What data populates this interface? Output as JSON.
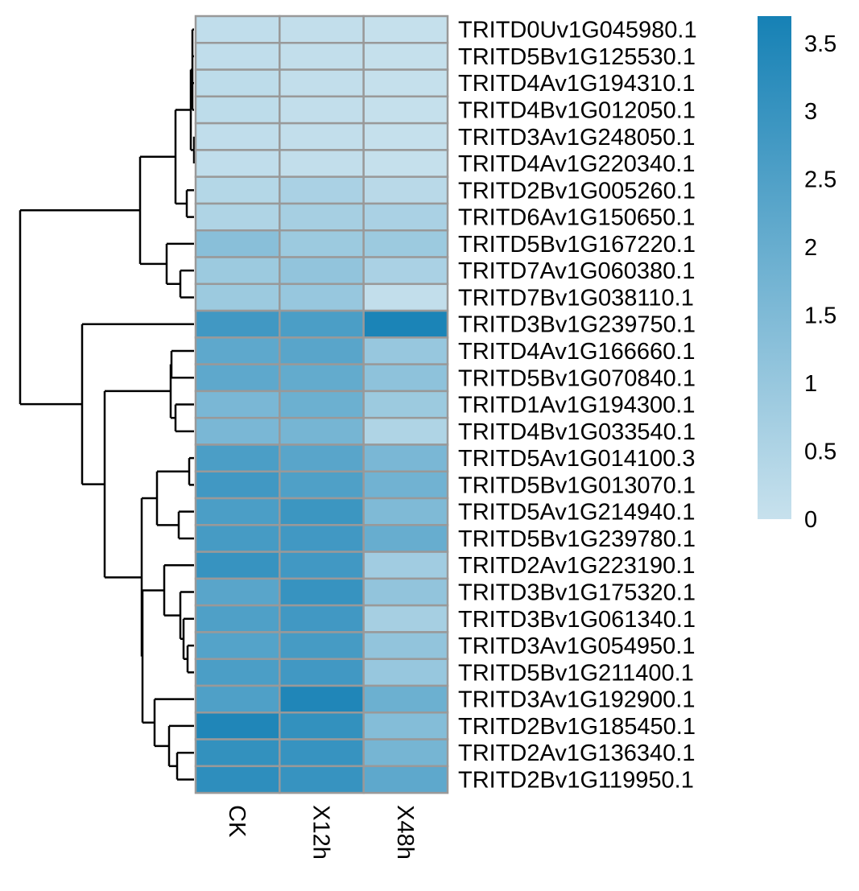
{
  "chart_data": {
    "type": "heatmap",
    "columns": [
      "CK",
      "X12h",
      "X48h"
    ],
    "rows": [
      "TRITD0Uv1G045980.1",
      "TRITD5Bv1G125530.1",
      "TRITD4Av1G194310.1",
      "TRITD4Bv1G012050.1",
      "TRITD3Av1G248050.1",
      "TRITD4Av1G220340.1",
      "TRITD2Bv1G005260.1",
      "TRITD6Av1G150650.1",
      "TRITD5Bv1G167220.1",
      "TRITD7Av1G060380.1",
      "TRITD7Bv1G038110.1",
      "TRITD3Bv1G239750.1",
      "TRITD4Av1G166660.1",
      "TRITD5Bv1G070840.1",
      "TRITD1Av1G194300.1",
      "TRITD4Bv1G033540.1",
      "TRITD5Av1G014100.3",
      "TRITD5Bv1G013070.1",
      "TRITD5Av1G214940.1",
      "TRITD5Bv1G239780.1",
      "TRITD2Av1G223190.1",
      "TRITD3Bv1G175320.1",
      "TRITD3Bv1G061340.1",
      "TRITD3Av1G054950.1",
      "TRITD5Bv1G211400.1",
      "TRITD3Av1G192900.1",
      "TRITD2Bv1G185450.1",
      "TRITD2Av1G136340.1",
      "TRITD2Bv1G119950.1"
    ],
    "values": [
      [
        0.15,
        0.1,
        0.05
      ],
      [
        0.15,
        0.1,
        0.05
      ],
      [
        0.2,
        0.1,
        0.05
      ],
      [
        0.2,
        0.1,
        0.05
      ],
      [
        0.15,
        0.1,
        0.05
      ],
      [
        0.15,
        0.1,
        0.05
      ],
      [
        0.4,
        0.6,
        0.3
      ],
      [
        0.5,
        0.7,
        0.6
      ],
      [
        1.3,
        0.9,
        0.9
      ],
      [
        0.9,
        1.1,
        0.6
      ],
      [
        0.9,
        1.0,
        0.1
      ],
      [
        2.8,
        2.6,
        3.6
      ],
      [
        2.2,
        2.3,
        1.0
      ],
      [
        2.2,
        2.1,
        1.2
      ],
      [
        1.6,
        1.9,
        0.9
      ],
      [
        1.6,
        1.7,
        0.5
      ],
      [
        2.6,
        2.3,
        1.6
      ],
      [
        2.8,
        2.5,
        1.8
      ],
      [
        2.6,
        2.9,
        1.5
      ],
      [
        2.7,
        2.8,
        2.0
      ],
      [
        3.0,
        2.8,
        0.8
      ],
      [
        2.3,
        3.0,
        1.1
      ],
      [
        2.5,
        2.8,
        0.7
      ],
      [
        2.4,
        2.7,
        1.1
      ],
      [
        2.6,
        2.8,
        1.0
      ],
      [
        2.5,
        3.5,
        1.9
      ],
      [
        3.5,
        3.1,
        1.4
      ],
      [
        3.1,
        3.0,
        1.7
      ],
      [
        3.2,
        3.0,
        2.2
      ]
    ],
    "legend": {
      "min": 0,
      "max": 3.7,
      "ticks": [
        "3.5",
        "3",
        "2.5",
        "2",
        "1.5",
        "1",
        "0.5",
        "0"
      ],
      "low_color": "#c7e1ed",
      "high_color": "#1681b5",
      "placement": "right"
    },
    "cell_border_color": "#999999",
    "dendrogram_color": "#000000"
  }
}
